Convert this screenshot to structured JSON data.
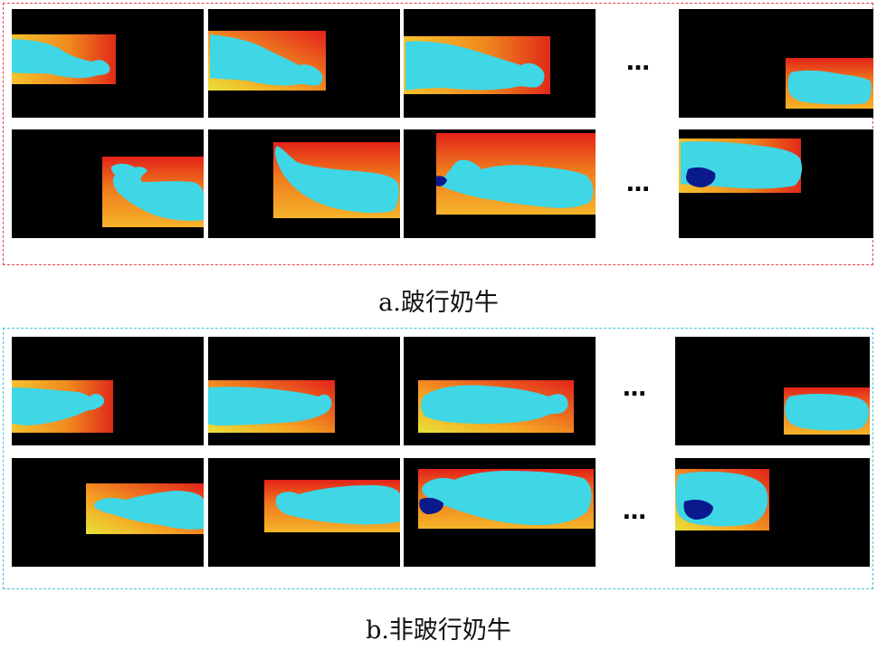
{
  "panel_a": {
    "caption": "a.跛行奶牛",
    "border_color": "#e8414f",
    "ellipsis": "…",
    "frames": [
      {
        "label": "lame-cow-row1-frame1"
      },
      {
        "label": "lame-cow-row1-frame2"
      },
      {
        "label": "lame-cow-row1-frame3"
      },
      {
        "label": "lame-cow-row1-frame-last"
      },
      {
        "label": "lame-cow-row2-frame1"
      },
      {
        "label": "lame-cow-row2-frame2"
      },
      {
        "label": "lame-cow-row2-frame3"
      },
      {
        "label": "lame-cow-row2-frame-last"
      }
    ]
  },
  "panel_b": {
    "caption": "b.非跛行奶牛",
    "border_color": "#43c3d4",
    "ellipsis": "…",
    "frames": [
      {
        "label": "nonlame-cow-row1-frame1"
      },
      {
        "label": "nonlame-cow-row1-frame2"
      },
      {
        "label": "nonlame-cow-row1-frame3"
      },
      {
        "label": "nonlame-cow-row1-frame-last"
      },
      {
        "label": "nonlame-cow-row2-frame1"
      },
      {
        "label": "nonlame-cow-row2-frame2"
      },
      {
        "label": "nonlame-cow-row2-frame3"
      },
      {
        "label": "nonlame-cow-row2-frame-last"
      }
    ]
  },
  "colors": {
    "background": "#000000",
    "cow": "#3fd6e6",
    "heat_low": "#f7c02a",
    "heat_high": "#e01818",
    "dark_blob": "#0a1a8c"
  }
}
